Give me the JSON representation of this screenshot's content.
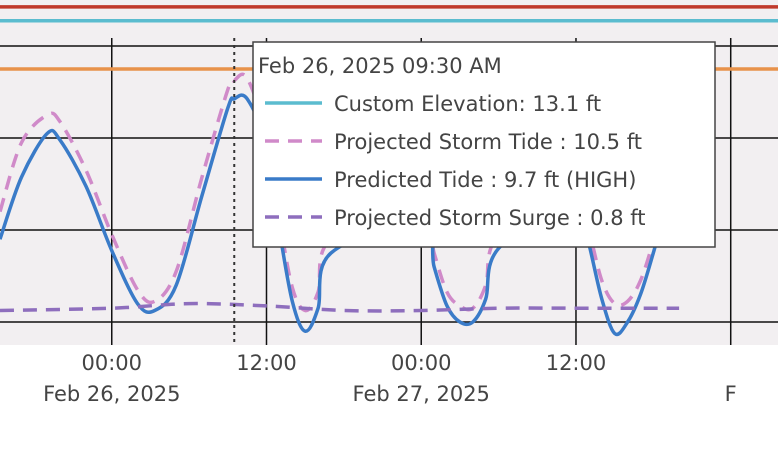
{
  "chart_data": {
    "type": "line",
    "title": "",
    "xlabel": "",
    "ylabel": "",
    "grid": true,
    "x_range": [
      "2025-02-25 15:20",
      "2025-02-28 03:40"
    ],
    "y_range": [
      -1,
      14
    ],
    "x_ticks": [
      {
        "t": "2025-02-26 00:00",
        "line1": "00:00",
        "line2": "Feb 26, 2025"
      },
      {
        "t": "2025-02-26 12:00",
        "line1": "12:00",
        "line2": ""
      },
      {
        "t": "2025-02-27 00:00",
        "line1": "00:00",
        "line2": "Feb 27, 2025"
      },
      {
        "t": "2025-02-27 12:00",
        "line1": "12:00",
        "line2": ""
      },
      {
        "t": "2025-02-28 00:00",
        "line1": "",
        "line2": "F"
      }
    ],
    "y_grid": [
      0,
      4,
      8,
      12
    ],
    "reference_lines": [
      {
        "value": 13.7,
        "color": "#c0392b"
      },
      {
        "value": 13.1,
        "color": "#5bbccf"
      },
      {
        "value": 11.0,
        "color": "#e8924a"
      }
    ],
    "series": [
      {
        "name": "Projected Storm Tide",
        "color": "#d08ac9",
        "dash": true,
        "points": [
          [
            "2025-02-25 15:20",
            4.8
          ],
          [
            "2025-02-25 17:00",
            7.8
          ],
          [
            "2025-02-25 19:00",
            9.0
          ],
          [
            "2025-02-25 20:00",
            8.7
          ],
          [
            "2025-02-25 22:00",
            6.6
          ],
          [
            "2025-02-26 00:00",
            3.8
          ],
          [
            "2025-02-26 02:00",
            1.4
          ],
          [
            "2025-02-26 03:20",
            0.9
          ],
          [
            "2025-02-26 05:00",
            2.2
          ],
          [
            "2025-02-26 07:00",
            6.3
          ],
          [
            "2025-02-26 09:00",
            10.1
          ],
          [
            "2025-02-26 09:30",
            10.5
          ],
          [
            "2025-02-26 10:30",
            10.6
          ],
          [
            "2025-02-26 12:00",
            8.1
          ],
          [
            "2025-02-26 13:00",
            4.5
          ],
          [
            "2025-02-26 14:00",
            1.5
          ],
          [
            "2025-02-26 15:00",
            0.5
          ],
          [
            "2025-02-26 16:00",
            1.3
          ],
          [
            "2025-02-26 17:00",
            3.6
          ],
          [
            "2025-02-27 00:00",
            5.0
          ],
          [
            "2025-02-27 01:00",
            3.0
          ],
          [
            "2025-02-27 02:00",
            1.3
          ],
          [
            "2025-02-27 03:00",
            0.7
          ],
          [
            "2025-02-27 04:00",
            0.6
          ],
          [
            "2025-02-27 05:00",
            1.6
          ],
          [
            "2025-02-27 06:00",
            3.8
          ],
          [
            "2025-02-27 12:00",
            6.0
          ],
          [
            "2025-02-27 13:00",
            4.0
          ],
          [
            "2025-02-27 14:00",
            1.8
          ],
          [
            "2025-02-27 15:00",
            0.8
          ],
          [
            "2025-02-27 16:00",
            0.9
          ],
          [
            "2025-02-27 17:00",
            1.8
          ],
          [
            "2025-02-27 18:00",
            3.5
          ],
          [
            "2025-02-27 19:00",
            5.5
          ],
          [
            "2025-02-27 20:00",
            7.0
          ]
        ]
      },
      {
        "name": "Predicted Tide",
        "color": "#3a7bc8",
        "dash": false,
        "points": [
          [
            "2025-02-25 15:20",
            3.6
          ],
          [
            "2025-02-25 17:00",
            6.3
          ],
          [
            "2025-02-25 19:00",
            8.2
          ],
          [
            "2025-02-25 20:00",
            7.9
          ],
          [
            "2025-02-25 22:00",
            5.9
          ],
          [
            "2025-02-26 00:00",
            3.1
          ],
          [
            "2025-02-26 02:00",
            0.8
          ],
          [
            "2025-02-26 03:20",
            0.5
          ],
          [
            "2025-02-26 05:00",
            1.6
          ],
          [
            "2025-02-26 07:00",
            5.5
          ],
          [
            "2025-02-26 09:00",
            9.3
          ],
          [
            "2025-02-26 09:30",
            9.7
          ],
          [
            "2025-02-26 10:30",
            9.7
          ],
          [
            "2025-02-26 12:00",
            7.7
          ],
          [
            "2025-02-26 13:00",
            4.0
          ],
          [
            "2025-02-26 14:00",
            0.9
          ],
          [
            "2025-02-26 15:00",
            -0.4
          ],
          [
            "2025-02-26 16:00",
            0.6
          ],
          [
            "2025-02-26 17:00",
            3.0
          ],
          [
            "2025-02-27 00:00",
            4.5
          ],
          [
            "2025-02-27 01:00",
            2.4
          ],
          [
            "2025-02-27 02:00",
            0.7
          ],
          [
            "2025-02-27 03:00",
            0.0
          ],
          [
            "2025-02-27 04:00",
            0.0
          ],
          [
            "2025-02-27 05:00",
            1.0
          ],
          [
            "2025-02-27 06:00",
            3.2
          ],
          [
            "2025-02-27 12:00",
            5.5
          ],
          [
            "2025-02-27 13:00",
            3.4
          ],
          [
            "2025-02-27 14:00",
            1.0
          ],
          [
            "2025-02-27 15:00",
            -0.5
          ],
          [
            "2025-02-27 16:00",
            0.0
          ],
          [
            "2025-02-27 17:00",
            1.2
          ],
          [
            "2025-02-27 18:00",
            3.0
          ],
          [
            "2025-02-27 19:00",
            5.0
          ],
          [
            "2025-02-27 20:00",
            6.5
          ]
        ]
      },
      {
        "name": "Projected Storm Surge",
        "color": "#8e6ebd",
        "dash": true,
        "points": [
          [
            "2025-02-25 15:20",
            0.5
          ],
          [
            "2025-02-26 00:00",
            0.6
          ],
          [
            "2025-02-26 06:00",
            0.8
          ],
          [
            "2025-02-26 12:00",
            0.7
          ],
          [
            "2025-02-26 18:00",
            0.5
          ],
          [
            "2025-02-27 00:00",
            0.5
          ],
          [
            "2025-02-27 06:00",
            0.6
          ],
          [
            "2025-02-27 12:00",
            0.6
          ],
          [
            "2025-02-27 20:00",
            0.6
          ]
        ]
      }
    ],
    "hover": {
      "t": "2025-02-26 09:30",
      "title": "Feb 26, 2025 09:30 AM",
      "entries": [
        {
          "label": "Custom Elevation: 13.1 ft",
          "color": "#5bbccf",
          "dash": false
        },
        {
          "label": "Projected Storm Tide : 10.5 ft",
          "color": "#d08ac9",
          "dash": true
        },
        {
          "label": "Predicted Tide : 9.7 ft (HIGH)",
          "color": "#3a7bc8",
          "dash": false
        },
        {
          "label": "Projected Storm Surge : 0.8 ft",
          "color": "#8e6ebd",
          "dash": true
        }
      ]
    }
  }
}
